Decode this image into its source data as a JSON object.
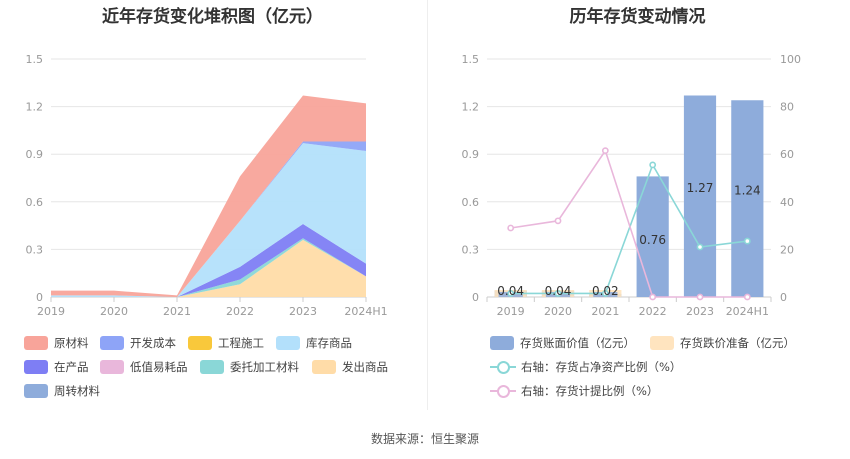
{
  "left_chart": {
    "title": "近年存货变化堆积图（亿元）",
    "type": "area",
    "stacked": true,
    "categories": [
      "2019",
      "2020",
      "2021",
      "2022",
      "2023",
      "2024H1"
    ],
    "y_ticks": [
      "0",
      "0.3",
      "0.6",
      "0.9",
      "1.2",
      "1.5"
    ],
    "ylim": [
      0,
      1.5
    ],
    "series": [
      {
        "name": "原材料",
        "color": "#f8a49a",
        "values": [
          0.03,
          0.03,
          0.01,
          0.28,
          0.29,
          0.24
        ]
      },
      {
        "name": "开发成本",
        "color": "#8ea4f7",
        "values": [
          0,
          0,
          0,
          0,
          0.01,
          0.06
        ]
      },
      {
        "name": "工程施工",
        "color": "#f9c83b",
        "values": [
          0,
          0,
          0,
          0,
          0,
          0
        ]
      },
      {
        "name": "库存商品",
        "color": "#b3e0fb",
        "values": [
          0.01,
          0.01,
          0,
          0.29,
          0.51,
          0.71
        ]
      },
      {
        "name": "在产品",
        "color": "#7e7ef4",
        "values": [
          0,
          0,
          0,
          0.08,
          0.09,
          0.08
        ]
      },
      {
        "name": "低值易耗品",
        "color": "#e9b7db",
        "values": [
          0,
          0,
          0,
          0,
          0,
          0
        ]
      },
      {
        "name": "委托加工材料",
        "color": "#8ad7d7",
        "values": [
          0,
          0,
          0,
          0.03,
          0.01,
          0
        ]
      },
      {
        "name": "发出商品",
        "color": "#ffdca8",
        "values": [
          0,
          0,
          0,
          0.08,
          0.36,
          0.13
        ]
      },
      {
        "name": "周转材料",
        "color": "#8eacdb",
        "values": [
          0,
          0,
          0,
          0,
          0,
          0
        ]
      }
    ]
  },
  "right_chart": {
    "title": "历年存货变动情况",
    "categories": [
      "2019",
      "2020",
      "2021",
      "2022",
      "2023",
      "2024H1"
    ],
    "y_left_ticks": [
      "0",
      "0.3",
      "0.6",
      "0.9",
      "1.2",
      "1.5"
    ],
    "y_right_ticks": [
      "0",
      "20",
      "40",
      "60",
      "80",
      "100"
    ],
    "ylim_left": [
      0,
      1.5
    ],
    "ylim_right": [
      0,
      100
    ],
    "bars": {
      "name": "存货账面价值（亿元）",
      "color": "#8eacdb",
      "values": [
        0.04,
        0.04,
        0.02,
        0.76,
        1.27,
        1.24
      ],
      "labels": [
        "0.04",
        "0.04",
        "0.02",
        "0.76",
        "1.27",
        "1.24"
      ]
    },
    "bars_secondary": {
      "name": "存货跌价准备（亿元）",
      "color": "#ffe4bf",
      "values": [
        0,
        0,
        0,
        0,
        0,
        0
      ]
    },
    "lines": [
      {
        "name": "右轴：存货占净资产比例（%）",
        "color": "#8ad7d7",
        "values": [
          1.5,
          1.5,
          1.5,
          55.5,
          21,
          23.5
        ]
      },
      {
        "name": "右轴：存货计提比例（%）",
        "color": "#e9b7db",
        "values": [
          29,
          32,
          61.5,
          0,
          0,
          0
        ]
      }
    ]
  },
  "source": "数据来源：恒生聚源"
}
